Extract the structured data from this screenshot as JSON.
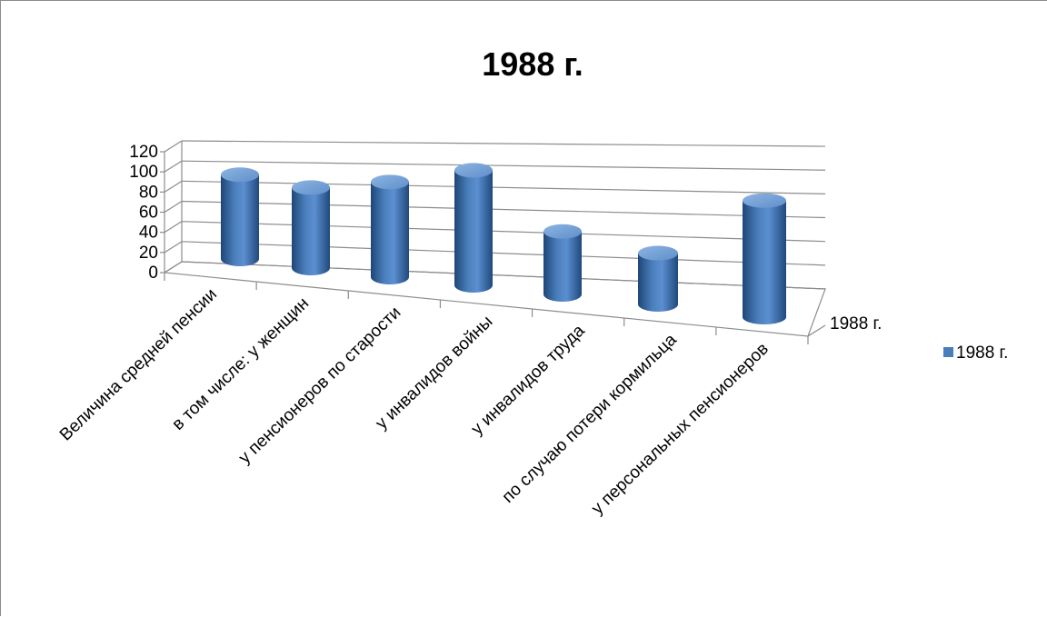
{
  "chart_data": {
    "type": "bar",
    "style": "3d-cylinder",
    "title": "1988 г.",
    "categories": [
      "Величина средней пенсии",
      "в том числе: у женщин",
      "у пенсионеров по старости",
      "у инвалидов войны",
      "у инвалидов труда",
      "по случаю потери кормильца",
      "у персональных пенсионеров"
    ],
    "series": [
      {
        "name": "1988 г.",
        "values": [
          94,
          88,
          102,
          121,
          65,
          52,
          115
        ]
      }
    ],
    "series_axis_label": "1988 г.",
    "yticks": [
      "0",
      "20",
      "40",
      "60",
      "80",
      "100",
      "120"
    ],
    "ylim": [
      0,
      120
    ],
    "grid": true,
    "legend": {
      "position": "right",
      "entries": [
        "1988 г."
      ]
    },
    "colors": {
      "bar": "#4a7ebb",
      "bar_dark": "#1f4777",
      "bar_light": "#7fa9dc",
      "grid": "#8c8c8c"
    }
  }
}
